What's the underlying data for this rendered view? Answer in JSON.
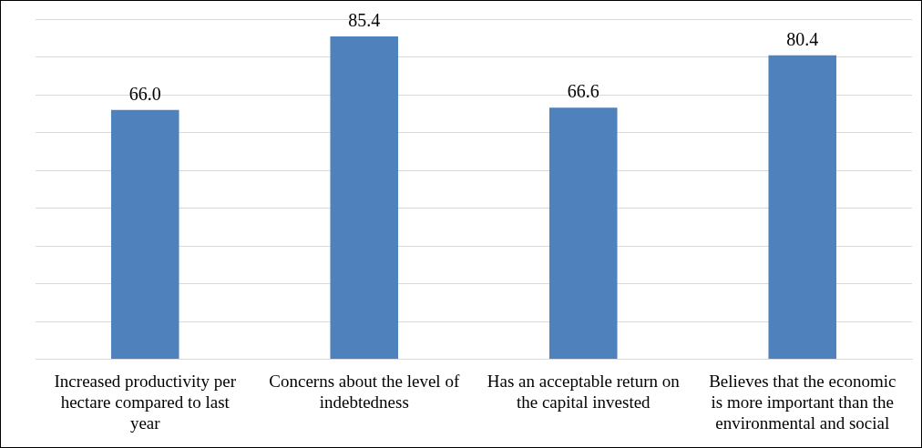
{
  "chart_data": {
    "type": "bar",
    "categories": [
      "Increased productivity per hectare compared to last year",
      "Concerns about the level of indebtedness",
      "Has an acceptable return on the capital invested",
      "Believes that the economic is more important than the environmental and social"
    ],
    "values": [
      66.0,
      85.4,
      66.6,
      80.4
    ],
    "color": "#4f81bd",
    "ylim": [
      0,
      90
    ],
    "yticks": [
      {
        "value": 0,
        "label": null
      },
      {
        "value": 10,
        "label": null
      },
      {
        "value": 20,
        "label": null
      },
      {
        "value": 30,
        "label": null
      },
      {
        "value": 40,
        "label": null
      },
      {
        "value": 50,
        "label": null
      },
      {
        "value": 60,
        "label": null
      },
      {
        "value": 70,
        "label": null
      },
      {
        "value": 80,
        "label": null
      },
      {
        "value": 90,
        "label": null
      }
    ],
    "value_labels": [
      "66.0",
      "85.4",
      "66.6",
      "80.4"
    ],
    "grid": "y",
    "tick_labels": "x",
    "legend": false
  }
}
